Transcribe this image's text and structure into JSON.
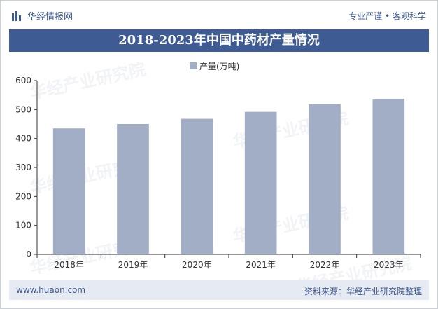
{
  "header": {
    "brand": "华经情报网",
    "tagline": "专业严谨 • 客观科学"
  },
  "watermark": "华经产业研究院",
  "chart_data": {
    "type": "bar",
    "title": "2018-2023年中国中药材产量情况",
    "legend": "产量(万吨)",
    "legend_position": "top-center",
    "categories": [
      "2018年",
      "2019年",
      "2020年",
      "2021年",
      "2022年",
      "2023年"
    ],
    "series": [
      {
        "name": "产量(万吨)",
        "values": [
          435,
          450,
          468,
          492,
          518,
          537
        ]
      }
    ],
    "ylim": [
      0,
      600
    ],
    "yticks": [
      0,
      100,
      200,
      300,
      400,
      500,
      600
    ],
    "xlabel": "",
    "ylabel": "",
    "grid": false,
    "bar_color": "#a2adc6"
  },
  "footer": {
    "site": "www.huaon.com",
    "source": "资料来源：华经产业研究院整理"
  },
  "colors": {
    "brand": "#3d5a8e",
    "title_bg": "#3f5b93",
    "footer_bg": "#e6eaf2"
  }
}
